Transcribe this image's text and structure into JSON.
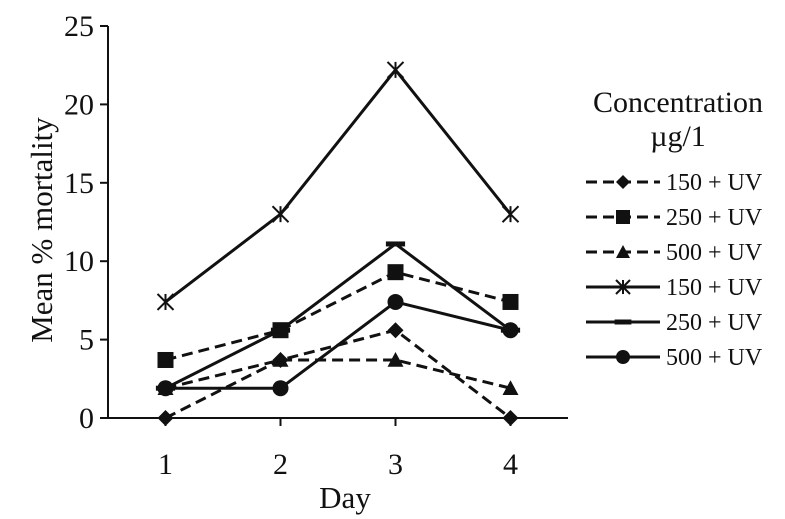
{
  "chart_data": {
    "type": "line",
    "xlabel": "Day",
    "ylabel": "Mean % mortality",
    "x": [
      1,
      2,
      3,
      4
    ],
    "xlim": [
      0.5,
      4.5
    ],
    "ylim": [
      0,
      25
    ],
    "yticks": [
      0,
      5,
      10,
      15,
      20,
      25
    ],
    "grid": false,
    "legend": {
      "placement": "right",
      "title_line1": "Concentration",
      "title_line2": "µg/1"
    },
    "series": [
      {
        "name": "150 + UV",
        "values": [
          0,
          3.7,
          5.6,
          0
        ],
        "marker": "diamond",
        "dash": "dashed",
        "color": "#111111"
      },
      {
        "name": "250 + UV",
        "values": [
          3.7,
          5.6,
          9.3,
          7.4
        ],
        "marker": "square",
        "dash": "dashed",
        "color": "#111111"
      },
      {
        "name": "500 + UV",
        "values": [
          1.9,
          3.7,
          3.7,
          1.9
        ],
        "marker": "triangle",
        "dash": "dashed",
        "color": "#111111"
      },
      {
        "name": "150 + UV",
        "values": [
          7.4,
          13,
          22.2,
          13
        ],
        "marker": "star",
        "dash": "solid",
        "color": "#111111"
      },
      {
        "name": "250 + UV",
        "values": [
          1.9,
          5.6,
          11.1,
          5.6
        ],
        "marker": "dash",
        "dash": "solid",
        "color": "#111111"
      },
      {
        "name": "500 + UV",
        "values": [
          1.9,
          1.9,
          7.4,
          5.6
        ],
        "marker": "circle",
        "dash": "solid",
        "color": "#111111"
      }
    ]
  }
}
